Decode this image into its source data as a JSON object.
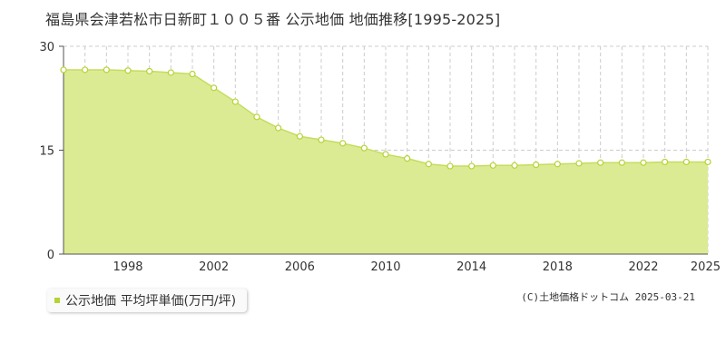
{
  "title": "福島県会津若松市日新町１００５番 公示地価 地価推移[1995-2025]",
  "copyright": "(C)土地価格ドットコム 2025-03-21",
  "legend": {
    "label": "公示地価 平均坪単価(万円/坪)"
  },
  "colors": {
    "fill": "#dbeb94",
    "line": "#c4dd5e",
    "point_stroke": "#b5d334",
    "legend": "#b5d334",
    "grid": "#cccccc"
  },
  "chart_data": {
    "type": "area",
    "x": [
      1995,
      1996,
      1997,
      1998,
      1999,
      2000,
      2001,
      2002,
      2003,
      2004,
      2005,
      2006,
      2007,
      2008,
      2009,
      2010,
      2011,
      2012,
      2013,
      2014,
      2015,
      2016,
      2017,
      2018,
      2019,
      2020,
      2021,
      2022,
      2023,
      2024,
      2025
    ],
    "series": [
      {
        "name": "公示地価 平均坪単価(万円/坪)",
        "values": [
          26.6,
          26.6,
          26.6,
          26.5,
          26.4,
          26.2,
          26.0,
          24.0,
          22.0,
          19.8,
          18.2,
          17.0,
          16.5,
          16.0,
          15.3,
          14.4,
          13.8,
          13.0,
          12.7,
          12.7,
          12.8,
          12.8,
          12.9,
          13.0,
          13.1,
          13.2,
          13.2,
          13.2,
          13.3,
          13.3,
          13.3
        ]
      }
    ],
    "xlim": [
      1995,
      2025
    ],
    "ylim": [
      0,
      30
    ],
    "yticks": [
      0,
      15,
      30
    ],
    "xtick_labels": [
      "1998",
      "2002",
      "2006",
      "2010",
      "2014",
      "2018",
      "2022",
      "2025"
    ],
    "xlabel": "",
    "ylabel": "",
    "grid": true,
    "legend_position": "bottom-left"
  }
}
